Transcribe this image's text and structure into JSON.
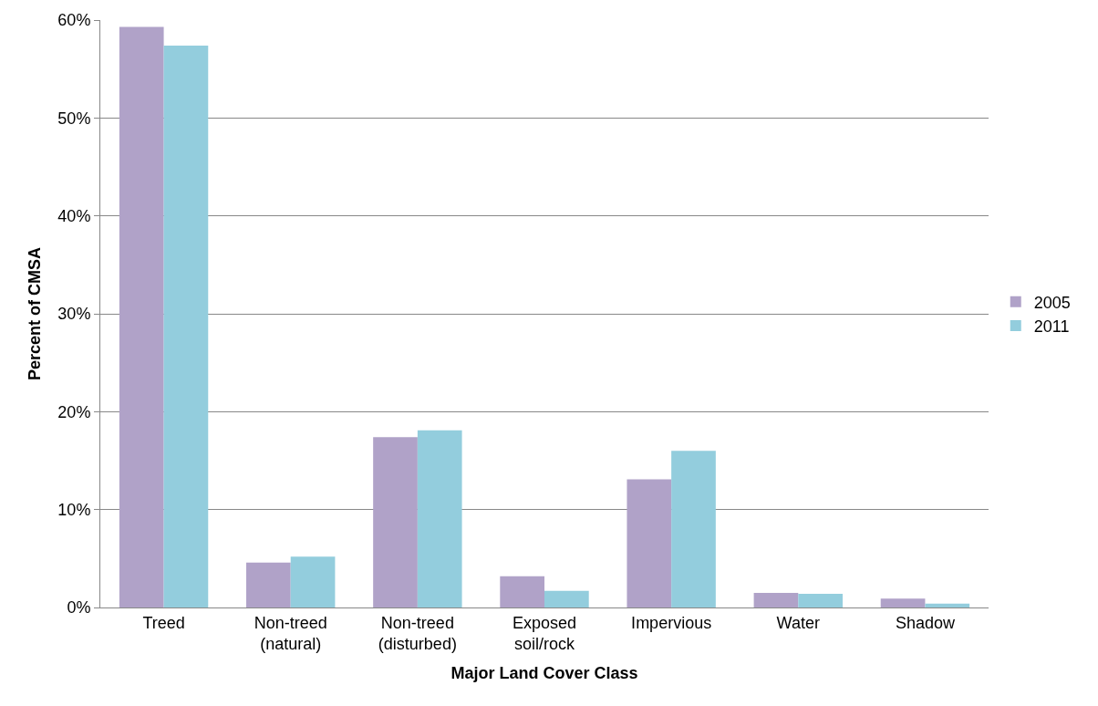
{
  "chart_data": {
    "type": "bar",
    "xlabel": "Major Land Cover Class",
    "ylabel": "Percent of CMSA",
    "categories": [
      "Treed",
      "Non-treed\n(natural)",
      "Non-treed\n(disturbed)",
      "Exposed\nsoil/rock",
      "Impervious",
      "Water",
      "Shadow"
    ],
    "series": [
      {
        "name": "2005",
        "color": "#b0a2c8",
        "values": [
          59.3,
          4.6,
          17.4,
          3.2,
          13.1,
          1.5,
          0.9
        ]
      },
      {
        "name": "2011",
        "color": "#93cddd",
        "values": [
          57.4,
          5.2,
          18.1,
          1.7,
          16.0,
          1.4,
          0.4
        ]
      }
    ],
    "ylim": [
      0,
      60
    ],
    "yticks": [
      {
        "value": 0,
        "label": "0%"
      },
      {
        "value": 10,
        "label": "10%"
      },
      {
        "value": 20,
        "label": "20%"
      },
      {
        "value": 30,
        "label": "30%"
      },
      {
        "value": 40,
        "label": "40%"
      },
      {
        "value": 50,
        "label": "50%"
      },
      {
        "value": 60,
        "label": "60%"
      }
    ],
    "grid": "y",
    "legend": "right"
  }
}
